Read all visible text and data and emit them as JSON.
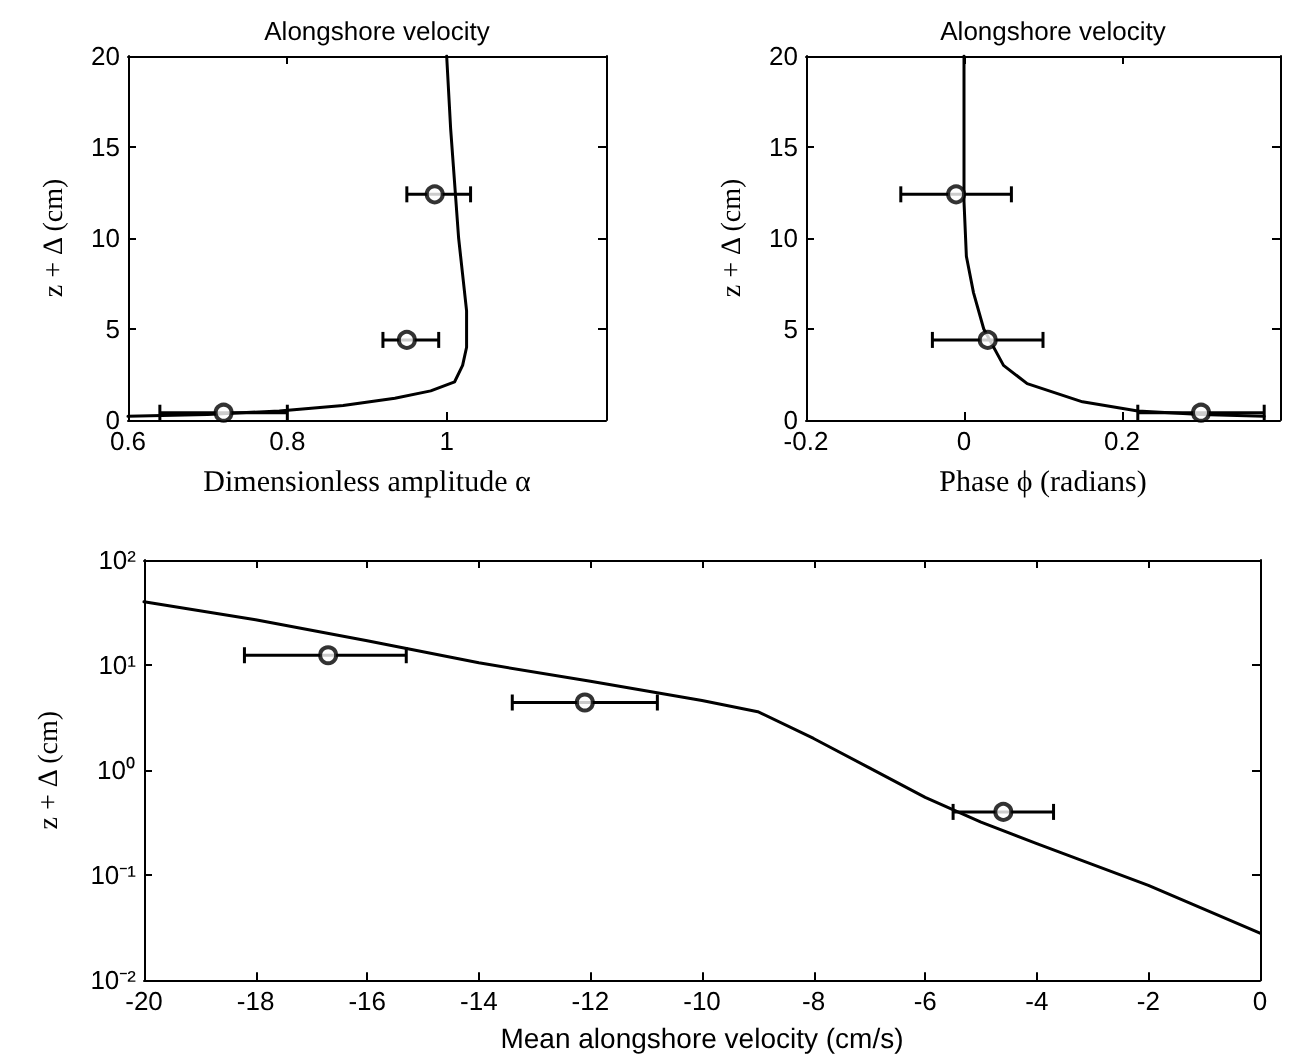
{
  "chart_data": [
    {
      "type": "line",
      "title": "Alongshore velocity",
      "xlabel": "Dimensionless amplitude α",
      "ylabel": "z + Δ (cm)",
      "xlim": [
        0.6,
        1.2
      ],
      "xticks": [
        0.6,
        0.8,
        1
      ],
      "ylim": [
        0,
        20
      ],
      "yticks": [
        0,
        5,
        10,
        15,
        20
      ],
      "grid": false,
      "line_style": "solid",
      "series": [
        {
          "color": "#000000",
          "marker": "none",
          "x": [
            0.6,
            0.7,
            0.79,
            0.87,
            0.935,
            0.98,
            1.01,
            1.02,
            1.025,
            1.025,
            1.02,
            1.015,
            1.01,
            1.005,
            1.0
          ],
          "values": [
            0.2,
            0.3,
            0.5,
            0.8,
            1.2,
            1.6,
            2.1,
            3,
            4,
            6,
            8,
            10,
            13,
            16,
            20
          ]
        },
        {
          "type": "scatter",
          "color": "#000000",
          "marker": "circle",
          "x": [
            0.72,
            0.95,
            0.985
          ],
          "values": [
            0.4,
            4.4,
            12.4
          ],
          "xerrors": [
            [
              0.64,
              0.8
            ],
            [
              0.92,
              0.99
            ],
            [
              0.95,
              1.03
            ]
          ]
        }
      ]
    },
    {
      "type": "line",
      "title": "Alongshore velocity",
      "xlabel": "Phase ϕ (radians)",
      "ylabel": "z + Δ (cm)",
      "xlim": [
        -0.2,
        0.4
      ],
      "xticks": [
        -0.2,
        0,
        0.2
      ],
      "ylim": [
        0,
        20
      ],
      "yticks": [
        0,
        5,
        10,
        15,
        20
      ],
      "grid": false,
      "line_style": "solid",
      "series": [
        {
          "color": "#000000",
          "marker": "none",
          "x": [
            0,
            0,
            0.003,
            0.012,
            0.025,
            0.05,
            0.08,
            0.15,
            0.22,
            0.3,
            0.38
          ],
          "values": [
            20,
            12,
            9,
            7,
            5,
            3,
            2,
            1,
            0.5,
            0.3,
            0.2
          ]
        },
        {
          "type": "scatter",
          "color": "#000000",
          "marker": "circle",
          "x": [
            -0.01,
            0.03,
            0.3
          ],
          "values": [
            12.4,
            4.4,
            0.4
          ],
          "xerrors": [
            [
              -0.08,
              0.06
            ],
            [
              -0.04,
              0.1
            ],
            [
              0.22,
              0.38
            ]
          ]
        }
      ]
    },
    {
      "type": "line",
      "xlabel": "Mean alongshore velocity (cm/s)",
      "ylabel": "z + Δ (cm)",
      "log": "y",
      "xlim": [
        -20,
        0
      ],
      "xticks": [
        -20,
        -18,
        -16,
        -14,
        -12,
        -10,
        -8,
        -6,
        -4,
        -2,
        0
      ],
      "ylim": [
        0.01,
        100
      ],
      "yticks": [
        {
          "value": 0.01,
          "label": "10⁻²"
        },
        {
          "value": 0.1,
          "label": "10⁻¹"
        },
        {
          "value": 1,
          "label": "10⁰"
        },
        {
          "value": 10,
          "label": "10¹"
        },
        {
          "value": 100,
          "label": "10²"
        }
      ],
      "grid": false,
      "line_style": "solid",
      "series": [
        {
          "color": "#000000",
          "marker": "none",
          "x": [
            -20,
            -18,
            -16,
            -14,
            -12,
            -10,
            -9,
            -8,
            -7,
            -6,
            -5,
            -4,
            -2,
            0
          ],
          "values": [
            40,
            27,
            17,
            10.5,
            7,
            4.6,
            3.6,
            2,
            1.05,
            0.55,
            0.32,
            0.2,
            0.08,
            0.028
          ]
        },
        {
          "type": "scatter",
          "color": "#000000",
          "marker": "circle",
          "x": [
            -16.7,
            -12.1,
            -4.6
          ],
          "values": [
            12.4,
            4.4,
            0.4
          ],
          "xerrors": [
            [
              -18.2,
              -15.3
            ],
            [
              -13.4,
              -10.8
            ],
            [
              -5.5,
              -3.7
            ]
          ]
        }
      ]
    }
  ]
}
